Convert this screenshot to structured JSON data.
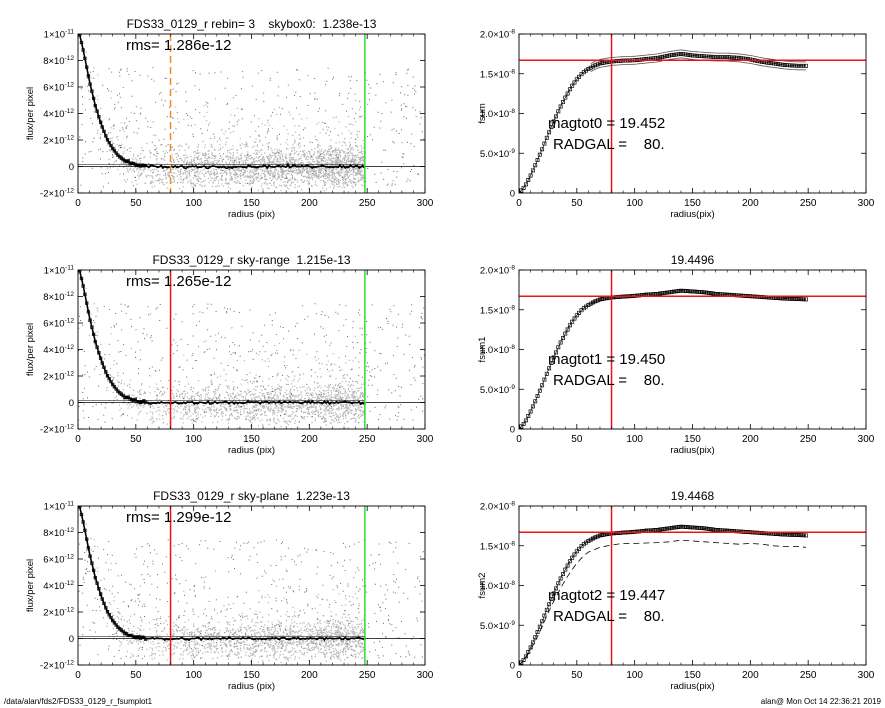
{
  "footer": {
    "path": "/data/alan/fds2/FDS33_0129_r_fsumplot1",
    "stamp": "alan@  Mon Oct 14 22:36:21 2019"
  },
  "colors": {
    "red": "#e8141b",
    "green": "#2fe02f",
    "orange": "#f08a1c",
    "gray": "#9a9a9a",
    "black": "#000000"
  },
  "chart_data": [
    {
      "type": "scatter",
      "title": "FDS33_0129_r rebin= 3    skybox0:  1.238e-13",
      "annotation": "rms= 1.286e-12",
      "xlabel": "radius (pix)",
      "ylabel": "flux/per pixel",
      "xlim": [
        0,
        300
      ],
      "ylim": [
        -2e-12,
        1e-11
      ],
      "xticks": [
        "0",
        "50",
        "100",
        "150",
        "200",
        "250",
        "300"
      ],
      "yticks": [
        {
          "v": -2e-12,
          "m": "-2×10",
          "e": "-12"
        },
        {
          "v": 0,
          "m": "0",
          "e": ""
        },
        {
          "v": 2e-12,
          "m": "2×10",
          "e": "-12"
        },
        {
          "v": 4e-12,
          "m": "4×10",
          "e": "-12"
        },
        {
          "v": 6e-12,
          "m": "6×10",
          "e": "-12"
        },
        {
          "v": 8e-12,
          "m": "8×10",
          "e": "-12"
        },
        {
          "v": 1e-11,
          "m": "1×10",
          "e": "-11"
        }
      ],
      "profile": [
        [
          0,
          1.05e-11
        ],
        [
          5,
          8.6e-12
        ],
        [
          10,
          6.4e-12
        ],
        [
          15,
          4.6e-12
        ],
        [
          20,
          3.2e-12
        ],
        [
          25,
          2.1e-12
        ],
        [
          30,
          1.35e-12
        ],
        [
          35,
          8e-13
        ],
        [
          40,
          4.5e-13
        ],
        [
          45,
          2.5e-13
        ],
        [
          50,
          1.2e-13
        ],
        [
          60,
          3e-14
        ],
        [
          70,
          -3e-14
        ],
        [
          80,
          -5e-14
        ],
        [
          100,
          -2e-14
        ],
        [
          150,
          0
        ],
        [
          200,
          2e-14
        ],
        [
          248,
          0
        ]
      ],
      "vlines": [
        {
          "x": 80,
          "color": "orange",
          "dashed": true
        },
        {
          "x": 248,
          "color": "green",
          "dashed": false
        }
      ]
    },
    {
      "type": "scatter",
      "title": "",
      "annotation": "magtot0 = 19.452\nRADGAL =    80.",
      "xlabel": "radius(pix)",
      "ylabel": "fsum",
      "xlim": [
        0,
        300
      ],
      "ylim": [
        0,
        2e-08
      ],
      "xticks": [
        "0",
        "50",
        "100",
        "150",
        "200",
        "250",
        "300"
      ],
      "yticks": [
        {
          "v": 0,
          "m": "0",
          "e": ""
        },
        {
          "v": 5e-09,
          "m": "5.0×10",
          "e": "-9"
        },
        {
          "v": 1e-08,
          "m": "1.0×10",
          "e": "-8"
        },
        {
          "v": 1.5e-08,
          "m": "1.5×10",
          "e": "-8"
        },
        {
          "v": 2e-08,
          "m": "2.0×10",
          "e": "-8"
        }
      ],
      "curve": [
        [
          0,
          0
        ],
        [
          5,
          8e-10
        ],
        [
          10,
          2.2e-09
        ],
        [
          15,
          3.8e-09
        ],
        [
          20,
          5.5e-09
        ],
        [
          25,
          7.3e-09
        ],
        [
          30,
          9e-09
        ],
        [
          35,
          1.06e-08
        ],
        [
          40,
          1.2e-08
        ],
        [
          45,
          1.33e-08
        ],
        [
          50,
          1.43e-08
        ],
        [
          55,
          1.51e-08
        ],
        [
          60,
          1.56e-08
        ],
        [
          65,
          1.6e-08
        ],
        [
          70,
          1.63e-08
        ],
        [
          80,
          1.655e-08
        ],
        [
          90,
          1.665e-08
        ],
        [
          100,
          1.67e-08
        ],
        [
          110,
          1.685e-08
        ],
        [
          120,
          1.7e-08
        ],
        [
          130,
          1.73e-08
        ],
        [
          140,
          1.75e-08
        ],
        [
          150,
          1.73e-08
        ],
        [
          160,
          1.72e-08
        ],
        [
          170,
          1.71e-08
        ],
        [
          180,
          1.71e-08
        ],
        [
          190,
          1.7e-08
        ],
        [
          200,
          1.68e-08
        ],
        [
          210,
          1.65e-08
        ],
        [
          220,
          1.63e-08
        ],
        [
          230,
          1.61e-08
        ],
        [
          240,
          1.6e-08
        ],
        [
          248,
          1.6e-08
        ]
      ],
      "band": 5e-10,
      "hline": 1.67e-08,
      "vline": 80
    },
    {
      "type": "scatter",
      "title": "FDS33_0129_r sky-range  1.215e-13",
      "annotation": "rms= 1.265e-12",
      "xlabel": "radius (pix)",
      "ylabel": "flux/per pixel",
      "xlim": [
        0,
        300
      ],
      "ylim": [
        -2e-12,
        1e-11
      ],
      "xticks": [
        "0",
        "50",
        "100",
        "150",
        "200",
        "250",
        "300"
      ],
      "yticks": [
        {
          "v": -2e-12,
          "m": "-2×10",
          "e": "-12"
        },
        {
          "v": 0,
          "m": "0",
          "e": ""
        },
        {
          "v": 2e-12,
          "m": "2×10",
          "e": "-12"
        },
        {
          "v": 4e-12,
          "m": "4×10",
          "e": "-12"
        },
        {
          "v": 6e-12,
          "m": "6×10",
          "e": "-12"
        },
        {
          "v": 8e-12,
          "m": "8×10",
          "e": "-12"
        },
        {
          "v": 1e-11,
          "m": "1×10",
          "e": "-11"
        }
      ],
      "profile": [
        [
          0,
          1.05e-11
        ],
        [
          5,
          8.6e-12
        ],
        [
          10,
          6.4e-12
        ],
        [
          15,
          4.6e-12
        ],
        [
          20,
          3.2e-12
        ],
        [
          25,
          2.1e-12
        ],
        [
          30,
          1.35e-12
        ],
        [
          35,
          8e-13
        ],
        [
          40,
          4.5e-13
        ],
        [
          45,
          2.5e-13
        ],
        [
          50,
          1.2e-13
        ],
        [
          60,
          3e-14
        ],
        [
          70,
          -3e-14
        ],
        [
          80,
          -5e-14
        ],
        [
          100,
          -2e-14
        ],
        [
          150,
          0
        ],
        [
          200,
          2e-14
        ],
        [
          248,
          0
        ]
      ],
      "vlines": [
        {
          "x": 80,
          "color": "red",
          "dashed": false
        },
        {
          "x": 248,
          "color": "green",
          "dashed": false
        }
      ]
    },
    {
      "type": "scatter",
      "title": "19.4496",
      "annotation": "magtot1 = 19.450\nRADGAL =    80.",
      "xlabel": "radius(pix)",
      "ylabel": "fsum1",
      "xlim": [
        0,
        300
      ],
      "ylim": [
        0,
        2e-08
      ],
      "xticks": [
        "0",
        "50",
        "100",
        "150",
        "200",
        "250",
        "300"
      ],
      "yticks": [
        {
          "v": 0,
          "m": "0",
          "e": ""
        },
        {
          "v": 5e-09,
          "m": "5.0×10",
          "e": "-9"
        },
        {
          "v": 1e-08,
          "m": "1.0×10",
          "e": "-8"
        },
        {
          "v": 1.5e-08,
          "m": "1.5×10",
          "e": "-8"
        },
        {
          "v": 2e-08,
          "m": "2.0×10",
          "e": "-8"
        }
      ],
      "curve": [
        [
          0,
          0
        ],
        [
          5,
          8e-10
        ],
        [
          10,
          2.2e-09
        ],
        [
          15,
          3.8e-09
        ],
        [
          20,
          5.5e-09
        ],
        [
          25,
          7.3e-09
        ],
        [
          30,
          9e-09
        ],
        [
          35,
          1.06e-08
        ],
        [
          40,
          1.2e-08
        ],
        [
          45,
          1.33e-08
        ],
        [
          50,
          1.43e-08
        ],
        [
          55,
          1.51e-08
        ],
        [
          60,
          1.56e-08
        ],
        [
          65,
          1.6e-08
        ],
        [
          70,
          1.63e-08
        ],
        [
          80,
          1.655e-08
        ],
        [
          90,
          1.665e-08
        ],
        [
          100,
          1.675e-08
        ],
        [
          110,
          1.69e-08
        ],
        [
          120,
          1.7e-08
        ],
        [
          130,
          1.72e-08
        ],
        [
          140,
          1.74e-08
        ],
        [
          150,
          1.73e-08
        ],
        [
          160,
          1.72e-08
        ],
        [
          170,
          1.7e-08
        ],
        [
          180,
          1.69e-08
        ],
        [
          190,
          1.68e-08
        ],
        [
          200,
          1.67e-08
        ],
        [
          210,
          1.66e-08
        ],
        [
          220,
          1.65e-08
        ],
        [
          230,
          1.64e-08
        ],
        [
          240,
          1.635e-08
        ],
        [
          248,
          1.63e-08
        ]
      ],
      "band": 1.5e-10,
      "hline": 1.67e-08,
      "vline": 80
    },
    {
      "type": "scatter",
      "title": "FDS33_0129_r sky-plane  1.223e-13",
      "annotation": "rms= 1.299e-12",
      "xlabel": "radius (pix)",
      "ylabel": "flux/per pixel",
      "xlim": [
        0,
        300
      ],
      "ylim": [
        -2e-12,
        1e-11
      ],
      "xticks": [
        "0",
        "50",
        "100",
        "150",
        "200",
        "250",
        "300"
      ],
      "yticks": [
        {
          "v": -2e-12,
          "m": "-2×10",
          "e": "-12"
        },
        {
          "v": 0,
          "m": "0",
          "e": ""
        },
        {
          "v": 2e-12,
          "m": "2×10",
          "e": "-12"
        },
        {
          "v": 4e-12,
          "m": "4×10",
          "e": "-12"
        },
        {
          "v": 6e-12,
          "m": "6×10",
          "e": "-12"
        },
        {
          "v": 8e-12,
          "m": "8×10",
          "e": "-12"
        },
        {
          "v": 1e-11,
          "m": "1×10",
          "e": "-11"
        }
      ],
      "profile": [
        [
          0,
          1.05e-11
        ],
        [
          5,
          8.6e-12
        ],
        [
          10,
          6.4e-12
        ],
        [
          15,
          4.6e-12
        ],
        [
          20,
          3.2e-12
        ],
        [
          25,
          2.1e-12
        ],
        [
          30,
          1.35e-12
        ],
        [
          35,
          8e-13
        ],
        [
          40,
          4.5e-13
        ],
        [
          45,
          2.5e-13
        ],
        [
          50,
          1.2e-13
        ],
        [
          60,
          3e-14
        ],
        [
          70,
          -3e-14
        ],
        [
          80,
          -5e-14
        ],
        [
          100,
          -2e-14
        ],
        [
          150,
          0
        ],
        [
          200,
          2e-14
        ],
        [
          248,
          0
        ]
      ],
      "vlines": [
        {
          "x": 80,
          "color": "red",
          "dashed": false
        },
        {
          "x": 248,
          "color": "green",
          "dashed": false
        }
      ]
    },
    {
      "type": "scatter",
      "title": "19.4468",
      "annotation": "magtot2 = 19.447\nRADGAL =    80.",
      "xlabel": "radius(pix)",
      "ylabel": "fsum2",
      "xlim": [
        0,
        300
      ],
      "ylim": [
        0,
        2e-08
      ],
      "xticks": [
        "0",
        "50",
        "100",
        "150",
        "200",
        "250",
        "300"
      ],
      "yticks": [
        {
          "v": 0,
          "m": "0",
          "e": ""
        },
        {
          "v": 5e-09,
          "m": "5.0×10",
          "e": "-9"
        },
        {
          "v": 1e-08,
          "m": "1.0×10",
          "e": "-8"
        },
        {
          "v": 1.5e-08,
          "m": "1.5×10",
          "e": "-8"
        },
        {
          "v": 2e-08,
          "m": "2.0×10",
          "e": "-8"
        }
      ],
      "curve": [
        [
          0,
          0
        ],
        [
          5,
          8e-10
        ],
        [
          10,
          2.2e-09
        ],
        [
          15,
          3.8e-09
        ],
        [
          20,
          5.5e-09
        ],
        [
          25,
          7.3e-09
        ],
        [
          30,
          9e-09
        ],
        [
          35,
          1.06e-08
        ],
        [
          40,
          1.2e-08
        ],
        [
          45,
          1.33e-08
        ],
        [
          50,
          1.43e-08
        ],
        [
          55,
          1.51e-08
        ],
        [
          60,
          1.56e-08
        ],
        [
          65,
          1.6e-08
        ],
        [
          70,
          1.63e-08
        ],
        [
          80,
          1.655e-08
        ],
        [
          90,
          1.665e-08
        ],
        [
          100,
          1.675e-08
        ],
        [
          110,
          1.69e-08
        ],
        [
          120,
          1.7e-08
        ],
        [
          130,
          1.72e-08
        ],
        [
          140,
          1.74e-08
        ],
        [
          150,
          1.73e-08
        ],
        [
          160,
          1.72e-08
        ],
        [
          170,
          1.7e-08
        ],
        [
          180,
          1.69e-08
        ],
        [
          190,
          1.68e-08
        ],
        [
          200,
          1.67e-08
        ],
        [
          210,
          1.66e-08
        ],
        [
          220,
          1.65e-08
        ],
        [
          230,
          1.64e-08
        ],
        [
          240,
          1.635e-08
        ],
        [
          248,
          1.63e-08
        ]
      ],
      "band": 1.5e-10,
      "dashed_curve": [
        [
          0,
          0
        ],
        [
          5,
          7e-10
        ],
        [
          10,
          1.9e-09
        ],
        [
          15,
          3.3e-09
        ],
        [
          20,
          4.8e-09
        ],
        [
          25,
          6.5e-09
        ],
        [
          30,
          8e-09
        ],
        [
          35,
          9.4e-09
        ],
        [
          40,
          1.07e-08
        ],
        [
          45,
          1.18e-08
        ],
        [
          50,
          1.28e-08
        ],
        [
          55,
          1.36e-08
        ],
        [
          60,
          1.42e-08
        ],
        [
          70,
          1.48e-08
        ],
        [
          80,
          1.51e-08
        ],
        [
          90,
          1.53e-08
        ],
        [
          100,
          1.53e-08
        ],
        [
          110,
          1.535e-08
        ],
        [
          120,
          1.54e-08
        ],
        [
          130,
          1.55e-08
        ],
        [
          140,
          1.57e-08
        ],
        [
          150,
          1.56e-08
        ],
        [
          160,
          1.55e-08
        ],
        [
          170,
          1.54e-08
        ],
        [
          180,
          1.53e-08
        ],
        [
          190,
          1.52e-08
        ],
        [
          200,
          1.53e-08
        ],
        [
          210,
          1.52e-08
        ],
        [
          220,
          1.5e-08
        ],
        [
          230,
          1.49e-08
        ],
        [
          240,
          1.49e-08
        ],
        [
          248,
          1.48e-08
        ]
      ],
      "hline": 1.67e-08,
      "vline": 80
    }
  ]
}
